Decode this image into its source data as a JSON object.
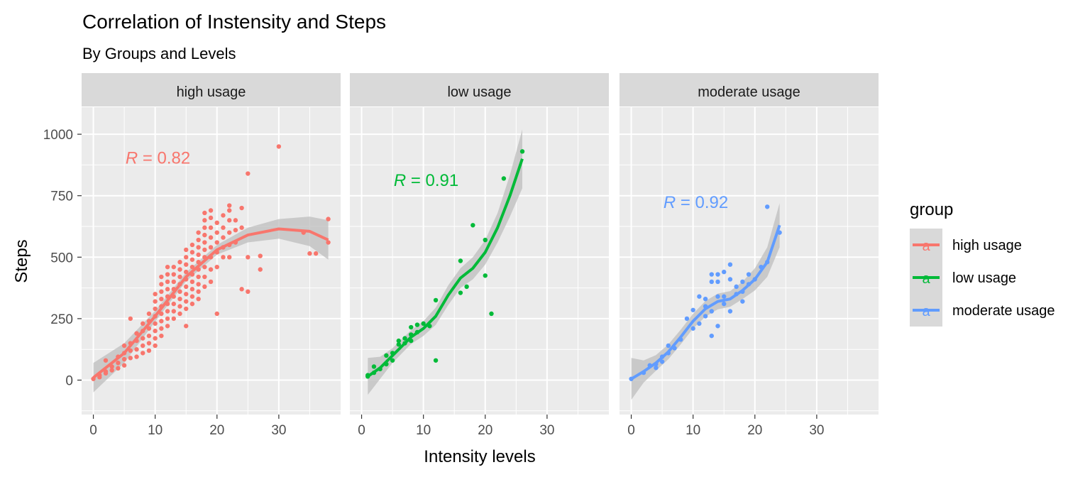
{
  "chart_data": {
    "type": "scatter",
    "title": "Correlation of Instensity and Steps",
    "subtitle": "By Groups and Levels",
    "xlabel": "Intensity levels",
    "ylabel": "Steps",
    "xlim": [
      -1.9,
      40
    ],
    "ylim": [
      -140,
      1110
    ],
    "x_ticks": [
      0,
      10,
      20,
      30
    ],
    "y_ticks": [
      0,
      250,
      500,
      750,
      1000
    ],
    "grid": true,
    "legend": {
      "title": "group",
      "placement": "right",
      "entries": [
        "high usage",
        "low usage",
        "moderate usage"
      ],
      "key_glyph": "a"
    },
    "colors": {
      "high usage": "#F8766D",
      "low usage": "#00BA38",
      "moderate usage": "#619CFF",
      "panel_background": "#EBEBEB",
      "strip_background": "#D9D9D9",
      "confidence_band": "#BDBDBD"
    },
    "panels": [
      {
        "name": "high usage",
        "color": "#F8766D",
        "R_prefix": "R",
        "R_value": " = 0.82",
        "R_label_pos": [
          5.2,
          880
        ],
        "points": [
          [
            0,
            5
          ],
          [
            1,
            12
          ],
          [
            1,
            20
          ],
          [
            2,
            28
          ],
          [
            2,
            35
          ],
          [
            3,
            40
          ],
          [
            3,
            55
          ],
          [
            2,
            80
          ],
          [
            4,
            48
          ],
          [
            4,
            70
          ],
          [
            4,
            95
          ],
          [
            5,
            60
          ],
          [
            5,
            85
          ],
          [
            5,
            110
          ],
          [
            5,
            140
          ],
          [
            6,
            90
          ],
          [
            6,
            120
          ],
          [
            6,
            150
          ],
          [
            6,
            250
          ],
          [
            7,
            95
          ],
          [
            7,
            125
          ],
          [
            7,
            160
          ],
          [
            7,
            190
          ],
          [
            8,
            110
          ],
          [
            8,
            140
          ],
          [
            8,
            170
          ],
          [
            8,
            200
          ],
          [
            8,
            230
          ],
          [
            9,
            120
          ],
          [
            9,
            150
          ],
          [
            9,
            180
          ],
          [
            9,
            210
          ],
          [
            9,
            240
          ],
          [
            9,
            270
          ],
          [
            10,
            140
          ],
          [
            10,
            170
          ],
          [
            10,
            200
          ],
          [
            10,
            230
          ],
          [
            10,
            260
          ],
          [
            10,
            290
          ],
          [
            10,
            320
          ],
          [
            10,
            350
          ],
          [
            11,
            180
          ],
          [
            11,
            210
          ],
          [
            11,
            240
          ],
          [
            11,
            270
          ],
          [
            11,
            300
          ],
          [
            11,
            330
          ],
          [
            11,
            360
          ],
          [
            11,
            390
          ],
          [
            11,
            420
          ],
          [
            12,
            220
          ],
          [
            12,
            250
          ],
          [
            12,
            280
          ],
          [
            12,
            310
          ],
          [
            12,
            340
          ],
          [
            12,
            370
          ],
          [
            12,
            400
          ],
          [
            12,
            430
          ],
          [
            12,
            460
          ],
          [
            13,
            250
          ],
          [
            13,
            280
          ],
          [
            13,
            310
          ],
          [
            13,
            340
          ],
          [
            13,
            370
          ],
          [
            13,
            400
          ],
          [
            13,
            430
          ],
          [
            13,
            460
          ],
          [
            14,
            270
          ],
          [
            14,
            300
          ],
          [
            14,
            330
          ],
          [
            14,
            360
          ],
          [
            14,
            390
          ],
          [
            14,
            420
          ],
          [
            14,
            450
          ],
          [
            14,
            480
          ],
          [
            15,
            220
          ],
          [
            15,
            290
          ],
          [
            15,
            320
          ],
          [
            15,
            350
          ],
          [
            15,
            380
          ],
          [
            15,
            410
          ],
          [
            15,
            440
          ],
          [
            15,
            470
          ],
          [
            15,
            500
          ],
          [
            15,
            530
          ],
          [
            16,
            310
          ],
          [
            16,
            340
          ],
          [
            16,
            370
          ],
          [
            16,
            400
          ],
          [
            16,
            430
          ],
          [
            16,
            460
          ],
          [
            16,
            490
          ],
          [
            16,
            520
          ],
          [
            16,
            550
          ],
          [
            17,
            330
          ],
          [
            17,
            360
          ],
          [
            17,
            390
          ],
          [
            17,
            420
          ],
          [
            17,
            450
          ],
          [
            17,
            480
          ],
          [
            17,
            510
          ],
          [
            17,
            540
          ],
          [
            17,
            570
          ],
          [
            17,
            600
          ],
          [
            18,
            380
          ],
          [
            18,
            420
          ],
          [
            18,
            460
          ],
          [
            18,
            500
          ],
          [
            18,
            530
          ],
          [
            18,
            560
          ],
          [
            18,
            590
          ],
          [
            18,
            620
          ],
          [
            18,
            650
          ],
          [
            18,
            680
          ],
          [
            19,
            400
          ],
          [
            19,
            450
          ],
          [
            19,
            500
          ],
          [
            19,
            540
          ],
          [
            19,
            580
          ],
          [
            19,
            620
          ],
          [
            19,
            660
          ],
          [
            19,
            690
          ],
          [
            20,
            270
          ],
          [
            20,
            460
          ],
          [
            20,
            520
          ],
          [
            20,
            560
          ],
          [
            20,
            600
          ],
          [
            20,
            640
          ],
          [
            21,
            500
          ],
          [
            21,
            540
          ],
          [
            21,
            580
          ],
          [
            21,
            620
          ],
          [
            21,
            670
          ],
          [
            22,
            500
          ],
          [
            22,
            550
          ],
          [
            22,
            600
          ],
          [
            22,
            650
          ],
          [
            22,
            690
          ],
          [
            22,
            710
          ],
          [
            23,
            560
          ],
          [
            23,
            610
          ],
          [
            23,
            650
          ],
          [
            24,
            370
          ],
          [
            24,
            620
          ],
          [
            24,
            700
          ],
          [
            25,
            360
          ],
          [
            25,
            500
          ],
          [
            25,
            840
          ],
          [
            27,
            450
          ],
          [
            27,
            505
          ],
          [
            30,
            950
          ],
          [
            34,
            600
          ],
          [
            35,
            515
          ],
          [
            36,
            515
          ],
          [
            38,
            560
          ],
          [
            38,
            655
          ]
        ],
        "smooth": [
          [
            0,
            10
          ],
          [
            5,
            110
          ],
          [
            10,
            260
          ],
          [
            15,
            420
          ],
          [
            20,
            530
          ],
          [
            25,
            590
          ],
          [
            30,
            615
          ],
          [
            35,
            605
          ],
          [
            38,
            570
          ]
        ],
        "smooth_se": [
          60,
          40,
          22,
          18,
          20,
          30,
          40,
          60,
          80
        ]
      },
      {
        "name": "low usage",
        "color": "#00BA38",
        "R_prefix": "R",
        "R_value": " = 0.91",
        "R_label_pos": [
          5.2,
          790
        ],
        "points": [
          [
            1,
            15
          ],
          [
            1,
            20
          ],
          [
            2,
            30
          ],
          [
            2,
            55
          ],
          [
            3,
            45
          ],
          [
            4,
            65
          ],
          [
            4,
            100
          ],
          [
            5,
            110
          ],
          [
            5,
            80
          ],
          [
            6,
            145
          ],
          [
            6,
            160
          ],
          [
            7,
            150
          ],
          [
            7,
            170
          ],
          [
            8,
            160
          ],
          [
            8,
            185
          ],
          [
            8,
            215
          ],
          [
            9,
            195
          ],
          [
            9,
            225
          ],
          [
            10,
            230
          ],
          [
            11,
            220
          ],
          [
            12,
            80
          ],
          [
            12,
            325
          ],
          [
            16,
            355
          ],
          [
            16,
            485
          ],
          [
            17,
            380
          ],
          [
            18,
            630
          ],
          [
            20,
            425
          ],
          [
            20,
            570
          ],
          [
            21,
            270
          ],
          [
            23,
            820
          ],
          [
            26,
            930
          ]
        ],
        "smooth": [
          [
            1,
            15
          ],
          [
            3,
            50
          ],
          [
            5,
            100
          ],
          [
            8,
            175
          ],
          [
            10,
            210
          ],
          [
            12,
            260
          ],
          [
            14,
            345
          ],
          [
            16,
            415
          ],
          [
            18,
            455
          ],
          [
            20,
            520
          ],
          [
            22,
            620
          ],
          [
            24,
            750
          ],
          [
            26,
            900
          ]
        ],
        "smooth_se": [
          75,
          45,
          30,
          28,
          30,
          35,
          40,
          40,
          45,
          50,
          60,
          85,
          120
        ]
      },
      {
        "name": "moderate usage",
        "color": "#619CFF",
        "R_prefix": "R",
        "R_value": " = 0.92",
        "R_label_pos": [
          5.2,
          700
        ],
        "points": [
          [
            0,
            5
          ],
          [
            2,
            30
          ],
          [
            3,
            60
          ],
          [
            4,
            65
          ],
          [
            4,
            50
          ],
          [
            5,
            75
          ],
          [
            5,
            95
          ],
          [
            6,
            110
          ],
          [
            6,
            140
          ],
          [
            7,
            130
          ],
          [
            8,
            165
          ],
          [
            9,
            250
          ],
          [
            10,
            210
          ],
          [
            10,
            285
          ],
          [
            11,
            230
          ],
          [
            11,
            340
          ],
          [
            12,
            260
          ],
          [
            12,
            300
          ],
          [
            12,
            330
          ],
          [
            13,
            400
          ],
          [
            13,
            430
          ],
          [
            13,
            180
          ],
          [
            13,
            280
          ],
          [
            14,
            220
          ],
          [
            14,
            340
          ],
          [
            14,
            400
          ],
          [
            14,
            430
          ],
          [
            15,
            310
          ],
          [
            15,
            340
          ],
          [
            15,
            440
          ],
          [
            16,
            280
          ],
          [
            16,
            410
          ],
          [
            16,
            470
          ],
          [
            17,
            350
          ],
          [
            17,
            380
          ],
          [
            18,
            320
          ],
          [
            18,
            360
          ],
          [
            18,
            400
          ],
          [
            19,
            390
          ],
          [
            19,
            430
          ],
          [
            20,
            410
          ],
          [
            21,
            460
          ],
          [
            22,
            480
          ],
          [
            22,
            705
          ],
          [
            24,
            600
          ]
        ],
        "smooth": [
          [
            0,
            5
          ],
          [
            2,
            35
          ],
          [
            4,
            70
          ],
          [
            6,
            115
          ],
          [
            8,
            175
          ],
          [
            10,
            240
          ],
          [
            12,
            290
          ],
          [
            14,
            320
          ],
          [
            16,
            330
          ],
          [
            18,
            365
          ],
          [
            20,
            410
          ],
          [
            22,
            480
          ],
          [
            24,
            630
          ]
        ],
        "smooth_se": [
          85,
          45,
          32,
          30,
          30,
          30,
          32,
          32,
          32,
          35,
          45,
          60,
          90
        ]
      }
    ]
  }
}
